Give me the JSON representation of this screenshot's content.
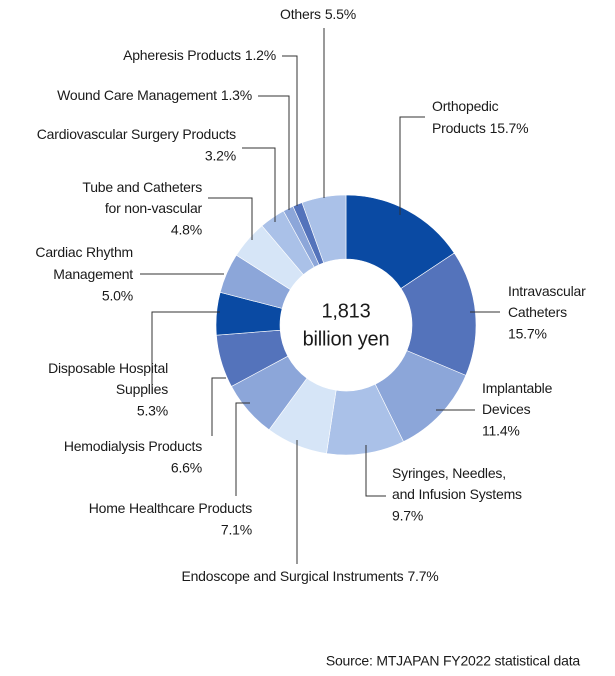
{
  "chart_data": {
    "type": "donut",
    "categories": [
      [
        "Orthopedic",
        "Products"
      ],
      [
        "Intravascular",
        "Catheters"
      ],
      [
        "Implantable",
        "Devices"
      ],
      [
        "Syringes, Needles,",
        "and Infusion Systems"
      ],
      [
        "Endoscope and Surgical Instruments"
      ],
      [
        "Home Healthcare Products"
      ],
      [
        "Hemodialysis Products"
      ],
      [
        "Disposable Hospital",
        "Supplies"
      ],
      [
        "Cardiac Rhythm",
        "Management"
      ],
      [
        "Tube and Catheters",
        "for non-vascular"
      ],
      [
        "Cardiovascular Surgery Products"
      ],
      [
        "Wound Care Management"
      ],
      [
        "Apheresis Products"
      ],
      [
        "Others"
      ]
    ],
    "values": [
      15.7,
      15.7,
      11.4,
      9.7,
      7.7,
      7.1,
      6.6,
      5.3,
      5.0,
      4.8,
      3.2,
      1.3,
      1.2,
      5.5
    ],
    "value_labels": [
      "15.7%",
      "15.7%",
      "11.4%",
      "9.7%",
      "7.7%",
      "7.1%",
      "6.6%",
      "5.3%",
      "5.0%",
      "4.8%",
      "3.2%",
      "1.3%",
      "1.2%",
      "5.5%"
    ],
    "colors": [
      "#0a4aa3",
      "#5473bb",
      "#8ca6d9",
      "#aac1e8",
      "#d6e5f7",
      "#8ca6d9",
      "#5473bb",
      "#0a4aa3",
      "#8ca6d9",
      "#d6e5f7",
      "#aac1e8",
      "#8ca6d9",
      "#5473bb",
      "#aac1e8"
    ],
    "total": {
      "value": 1813,
      "label": "1,813"
    },
    "total_unit": "billion yen",
    "source": "Source: MTJAPAN FY2022 statistical data"
  }
}
